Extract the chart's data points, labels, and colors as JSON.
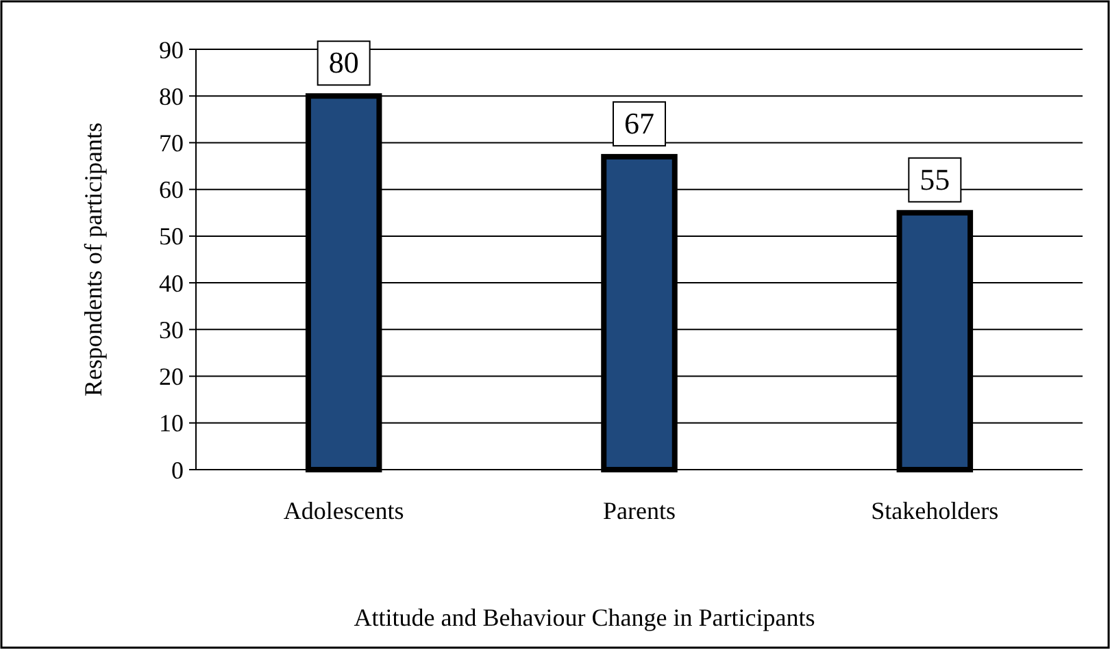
{
  "chart_data": {
    "type": "bar",
    "xlabel": "Attitude and Behaviour Change in Participants",
    "ylabel": "Respondents of participants",
    "categories": [
      "Adolescents",
      "Parents",
      "Stakeholders"
    ],
    "values": [
      80,
      67,
      55
    ],
    "color": "#1f497d",
    "ylim": [
      0,
      90
    ],
    "yticks": [
      0,
      10,
      20,
      30,
      40,
      50,
      60,
      70,
      80,
      90
    ],
    "grid": "y",
    "data_labels": true
  }
}
